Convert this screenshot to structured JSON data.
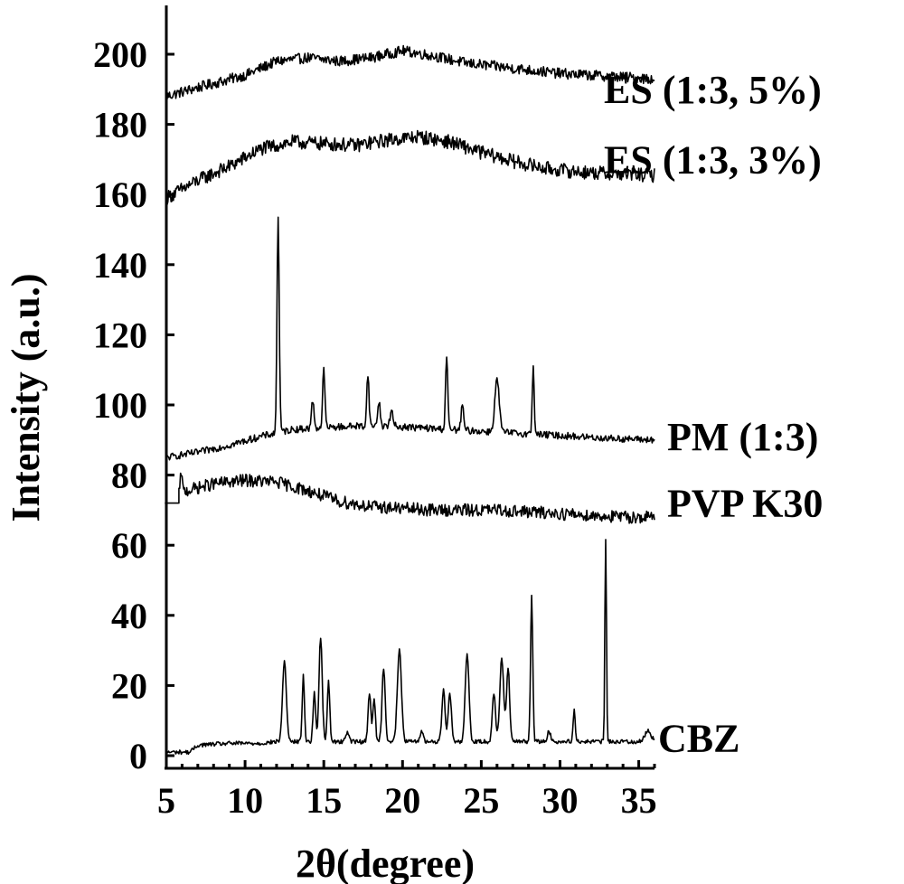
{
  "chart_data": {
    "type": "line",
    "title": "",
    "xlabel": "2θ(degree)",
    "ylabel": "Intensity (a.u.)",
    "xlim": [
      5,
      36
    ],
    "ylim": [
      0,
      205
    ],
    "xticks": [
      5,
      10,
      15,
      20,
      25,
      30,
      35
    ],
    "yticks": [
      0,
      20,
      40,
      60,
      80,
      100,
      120,
      140,
      160,
      180,
      200
    ],
    "xtick_labels": [
      "5",
      "10",
      "15",
      "20",
      "25",
      "30",
      "35"
    ],
    "ytick_labels": [
      "0",
      "20",
      "40",
      "60",
      "80",
      "100",
      "120",
      "140",
      "160",
      "180",
      "200"
    ],
    "grid": false,
    "legend": "labels beside each trace on the right",
    "series": [
      {
        "name": "ES (1:3, 5%)",
        "label_value": 190,
        "x_start": 5.0,
        "baseline": [
          [
            5,
            188
          ],
          [
            7,
            190.5
          ],
          [
            10,
            194
          ],
          [
            12,
            198
          ],
          [
            14,
            199
          ],
          [
            16,
            198
          ],
          [
            18,
            199
          ],
          [
            20,
            201
          ],
          [
            22,
            199.5
          ],
          [
            24,
            197.5
          ],
          [
            26,
            196.5
          ],
          [
            28,
            195.5
          ],
          [
            30,
            194.5
          ],
          [
            32,
            194
          ],
          [
            34,
            193.5
          ],
          [
            36,
            193
          ]
        ],
        "noise": 1.5,
        "peaks": []
      },
      {
        "name": "ES (1:3, 3%)",
        "label_value": 170,
        "x_start": 5.0,
        "baseline": [
          [
            5,
            159
          ],
          [
            7,
            164
          ],
          [
            9,
            168
          ],
          [
            11,
            173
          ],
          [
            13,
            175
          ],
          [
            15,
            174.5
          ],
          [
            17,
            174
          ],
          [
            19,
            175.5
          ],
          [
            21,
            176.5
          ],
          [
            23,
            175
          ],
          [
            25,
            172
          ],
          [
            27,
            169.5
          ],
          [
            29,
            167.5
          ],
          [
            31,
            166.5
          ],
          [
            33,
            166
          ],
          [
            36,
            165.5
          ]
        ],
        "noise": 2.0,
        "peaks": []
      },
      {
        "name": "PM (1:3)",
        "label_value": 91,
        "x_start": 5.0,
        "baseline": [
          [
            5,
            85
          ],
          [
            7,
            86.5
          ],
          [
            9,
            88.5
          ],
          [
            11,
            91
          ],
          [
            13,
            93
          ],
          [
            15,
            93.5
          ],
          [
            17,
            94
          ],
          [
            19,
            94
          ],
          [
            21,
            93.5
          ],
          [
            23,
            93
          ],
          [
            25,
            92.5
          ],
          [
            27,
            92
          ],
          [
            29,
            91.5
          ],
          [
            31,
            91
          ],
          [
            33,
            90.5
          ],
          [
            36,
            90
          ]
        ],
        "noise": 1.0,
        "peaks": [
          [
            12.1,
            62,
            0.07
          ],
          [
            14.3,
            8,
            0.08
          ],
          [
            15.0,
            17,
            0.07
          ],
          [
            17.8,
            15,
            0.07
          ],
          [
            18.5,
            7,
            0.08
          ],
          [
            19.3,
            4,
            0.1
          ],
          [
            22.8,
            21,
            0.07
          ],
          [
            23.8,
            7,
            0.08
          ],
          [
            26.0,
            15,
            0.14
          ],
          [
            28.3,
            20,
            0.06
          ]
        ]
      },
      {
        "name": "PVP K30",
        "label_value": 72,
        "x_start": 5.8,
        "pre_flat": [
          4.9,
          72
        ],
        "baseline": [
          [
            5.8,
            75
          ],
          [
            8,
            77.5
          ],
          [
            10,
            78.5
          ],
          [
            12,
            78
          ],
          [
            14,
            75.5
          ],
          [
            16,
            72.5
          ],
          [
            18,
            71
          ],
          [
            20,
            70.5
          ],
          [
            22,
            70
          ],
          [
            24,
            70
          ],
          [
            26,
            70
          ],
          [
            28,
            69.5
          ],
          [
            30,
            69
          ],
          [
            32,
            68.5
          ],
          [
            34,
            68
          ],
          [
            36,
            68
          ]
        ],
        "noise": 1.8,
        "peaks": [
          [
            5.95,
            6,
            0.05
          ]
        ]
      },
      {
        "name": "CBZ",
        "label_value": 5,
        "x_start": 5.0,
        "baseline": [
          [
            5,
            1
          ],
          [
            6.5,
            1
          ],
          [
            7,
            3
          ],
          [
            9,
            3.5
          ],
          [
            11,
            3.5
          ],
          [
            12,
            4
          ],
          [
            13,
            4
          ],
          [
            36,
            4
          ]
        ],
        "noise": 0.6,
        "peaks": [
          [
            12.5,
            23,
            0.12
          ],
          [
            13.7,
            19,
            0.07
          ],
          [
            14.4,
            14,
            0.08
          ],
          [
            14.8,
            30,
            0.1
          ],
          [
            15.3,
            17,
            0.08
          ],
          [
            16.5,
            3,
            0.1
          ],
          [
            17.9,
            14,
            0.09
          ],
          [
            18.2,
            12,
            0.08
          ],
          [
            18.8,
            21,
            0.1
          ],
          [
            19.8,
            26,
            0.13
          ],
          [
            21.2,
            3,
            0.1
          ],
          [
            22.6,
            15,
            0.1
          ],
          [
            23.0,
            14,
            0.1
          ],
          [
            24.1,
            25,
            0.12
          ],
          [
            25.8,
            14,
            0.1
          ],
          [
            26.3,
            24,
            0.12
          ],
          [
            26.7,
            21,
            0.1
          ],
          [
            28.2,
            42,
            0.07
          ],
          [
            29.3,
            3,
            0.1
          ],
          [
            30.9,
            9,
            0.07
          ],
          [
            32.9,
            58,
            0.05
          ],
          [
            35.6,
            3,
            0.2
          ]
        ]
      }
    ]
  }
}
